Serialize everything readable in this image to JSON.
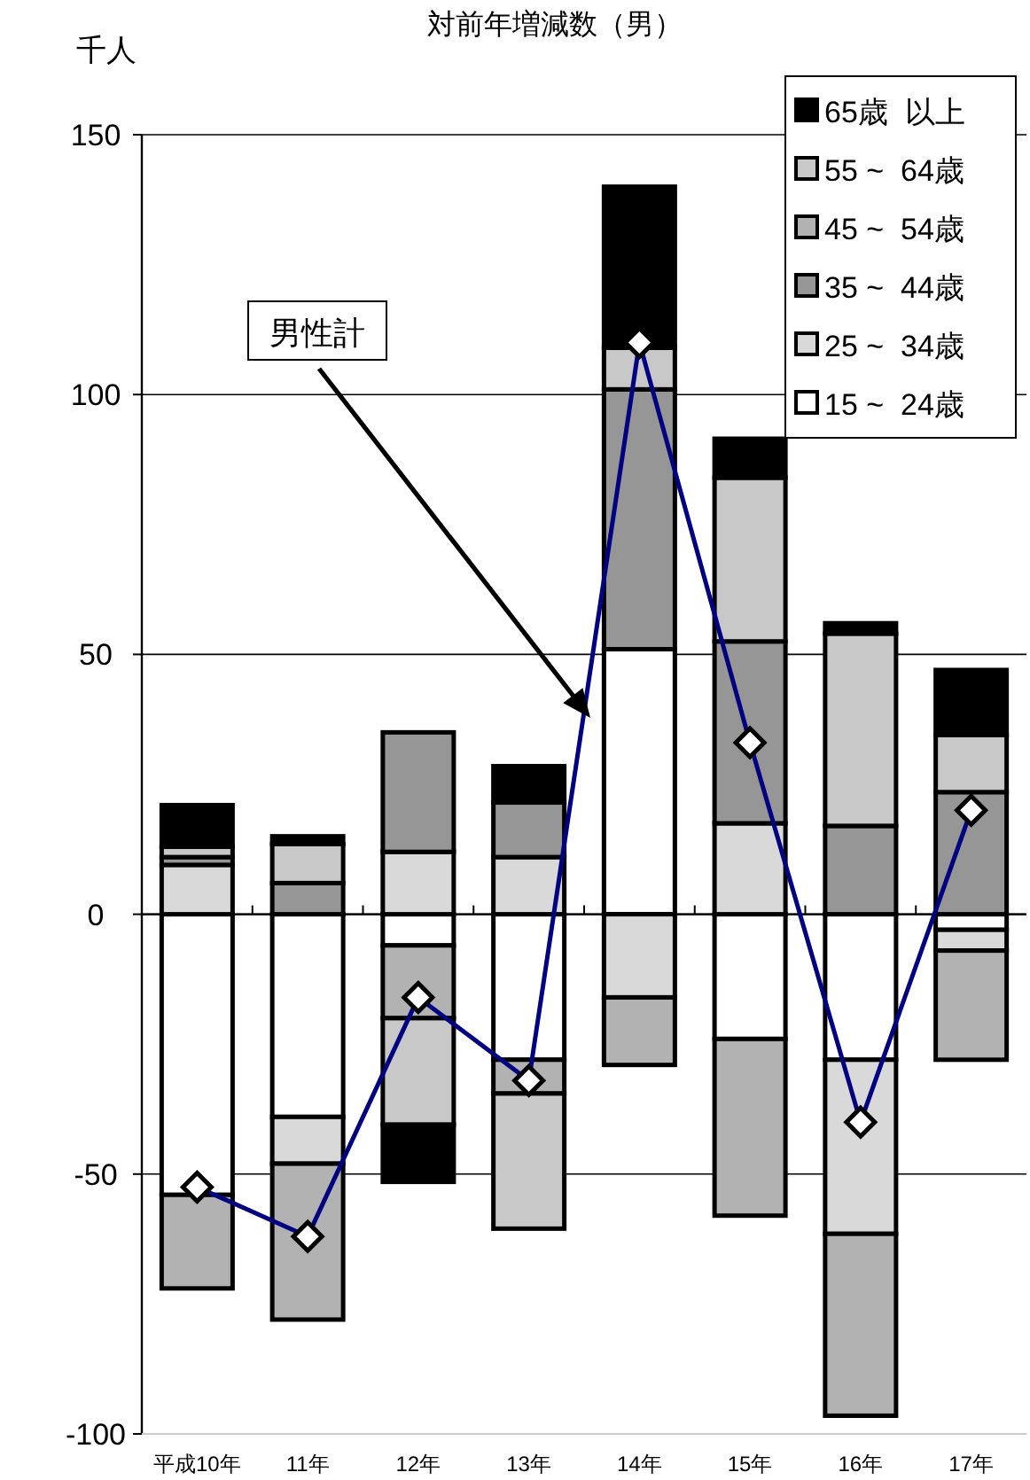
{
  "chart_data": {
    "type": "bar",
    "stacked": true,
    "title": "対前年増減数（男）",
    "ylabel": "千人",
    "categories": [
      "平成10年",
      "11年",
      "12年",
      "13年",
      "14年",
      "15年",
      "16年",
      "17年"
    ],
    "series": [
      {
        "name": "15 ~  24歳",
        "color": "#ffffff",
        "values": [
          -54,
          -39,
          -6,
          -28,
          51,
          -24,
          -28,
          -3
        ]
      },
      {
        "name": "25 ~  34歳",
        "color": "#d9d9d9",
        "values": [
          9.5,
          -9,
          12,
          11,
          -16,
          17.5,
          -33.5,
          -4
        ]
      },
      {
        "name": "35 ~  44歳",
        "color": "#969696",
        "values": [
          1.5,
          6,
          23,
          10.5,
          50,
          35,
          17,
          23.5
        ]
      },
      {
        "name": "45 ~  54歳",
        "color": "#b2b2b2",
        "values": [
          -18,
          -30,
          -14,
          -6.5,
          -13,
          -34,
          -35,
          -21
        ]
      },
      {
        "name": "55 ~  64歳",
        "color": "#c8c8c8",
        "values": [
          2,
          7.5,
          -20.5,
          -26,
          8,
          31.5,
          37,
          11
        ]
      },
      {
        "name": "65歳  以上",
        "color": "#000000",
        "values": [
          8,
          1.5,
          -11,
          7,
          31,
          7.5,
          2,
          12.5
        ]
      },
      {
        "name": "男性計",
        "type": "line",
        "color": "#000080",
        "marker": "diamond",
        "values": [
          -52.5,
          -62,
          -16,
          -32,
          110,
          33,
          -40,
          20
        ]
      }
    ],
    "ylim": [
      -100,
      150
    ],
    "yticks": [
      -100,
      -50,
      0,
      50,
      100,
      150
    ],
    "grid": "y",
    "legend": "top right"
  }
}
